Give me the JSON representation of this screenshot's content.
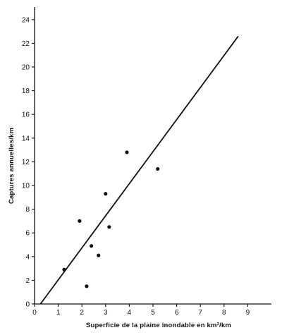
{
  "chart_data": {
    "type": "scatter",
    "xlabel": "Superficie de la plaine inondable en km²/km",
    "ylabel": "Captures annuelles/km",
    "xlim": [
      0,
      10
    ],
    "ylim": [
      0,
      25
    ],
    "x_ticks": [
      0,
      1,
      2,
      3,
      4,
      5,
      6,
      7,
      8,
      9
    ],
    "y_ticks": [
      0,
      2,
      4,
      6,
      8,
      10,
      12,
      14,
      16,
      18,
      20,
      22,
      24
    ],
    "grid": false,
    "series": [
      {
        "points": [
          {
            "x": 1.25,
            "y": 2.9
          },
          {
            "x": 1.9,
            "y": 7.0
          },
          {
            "x": 2.2,
            "y": 1.5
          },
          {
            "x": 2.4,
            "y": 4.9
          },
          {
            "x": 2.7,
            "y": 4.1
          },
          {
            "x": 3.0,
            "y": 9.3
          },
          {
            "x": 3.15,
            "y": 6.5
          },
          {
            "x": 3.9,
            "y": 12.8
          },
          {
            "x": 5.2,
            "y": 11.4
          }
        ]
      }
    ],
    "fit_line": {
      "x": [
        0.25,
        8.6
      ],
      "y": [
        0,
        22.6
      ]
    }
  }
}
